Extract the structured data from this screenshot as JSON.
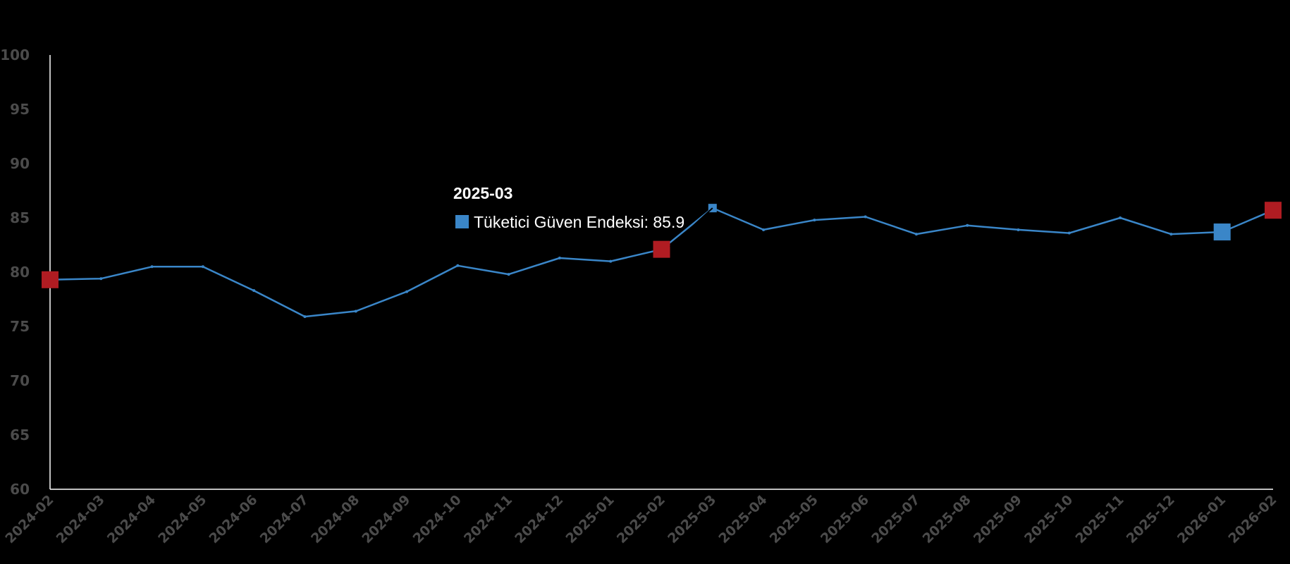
{
  "chart_data": {
    "type": "line",
    "title": "",
    "xlabel": "",
    "ylabel": "",
    "x": [
      "2024-02",
      "2024-03",
      "2024-04",
      "2024-05",
      "2024-06",
      "2024-07",
      "2024-08",
      "2024-09",
      "2024-10",
      "2024-11",
      "2024-12",
      "2025-01",
      "2025-02",
      "2025-03",
      "2025-04",
      "2025-05",
      "2025-06",
      "2025-07",
      "2025-08",
      "2025-09",
      "2025-10",
      "2025-11",
      "2025-12",
      "2026-01",
      "2026-02"
    ],
    "series": [
      {
        "name": "Tüketici Güven Endeksi",
        "color": "#3a86c8",
        "values": [
          79.3,
          79.4,
          80.5,
          80.5,
          78.3,
          75.9,
          76.4,
          78.2,
          80.6,
          79.8,
          81.3,
          81.0,
          82.1,
          85.9,
          83.9,
          84.8,
          85.1,
          83.5,
          84.3,
          83.9,
          83.6,
          85.0,
          83.5,
          83.7,
          85.7
        ]
      }
    ],
    "ylim": [
      60,
      100
    ],
    "yticks": [
      60,
      65,
      70,
      75,
      80,
      85,
      90,
      95,
      100
    ],
    "highlight_markers": [
      {
        "x": "2024-02",
        "color": "#b01c22"
      },
      {
        "x": "2025-02",
        "color": "#b01c22"
      },
      {
        "x": "2026-01",
        "color": "#3a86c8"
      },
      {
        "x": "2026-02",
        "color": "#b01c22"
      }
    ],
    "grid": false,
    "legend": "none"
  },
  "tooltip": {
    "x": "2025-03",
    "title": "2025-03",
    "text": "Tüketici Güven Endeksi: 85.9",
    "swatch_color": "#3a86c8"
  }
}
